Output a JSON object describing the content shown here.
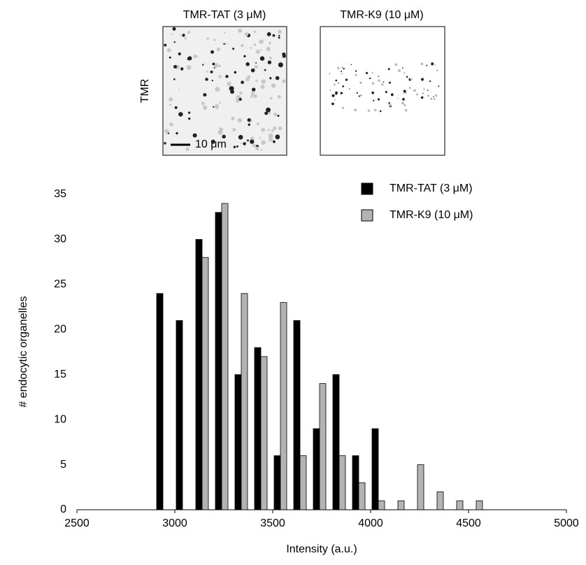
{
  "image_panels": {
    "titles": [
      "TMR-TAT (3 μM)",
      "TMR-K9 (10 μM)"
    ],
    "row_label": "TMR",
    "scale_bar": "10 μm"
  },
  "chart_data": {
    "type": "bar",
    "x": [
      2900,
      3000,
      3100,
      3200,
      3300,
      3400,
      3500,
      3600,
      3700,
      3800,
      3900,
      4000,
      4100,
      4200,
      4300,
      4400,
      4500
    ],
    "series": [
      {
        "name": "TMR-TAT (3 μM)",
        "color": "#000000",
        "values": [
          24,
          21,
          30,
          33,
          15,
          18,
          6,
          21,
          9,
          15,
          6,
          9,
          null,
          null,
          null,
          null,
          null
        ]
      },
      {
        "name": "TMR-K9 (10 μM)",
        "color": "#b3b3b3",
        "values": [
          null,
          null,
          28,
          34,
          24,
          17,
          23,
          6,
          14,
          6,
          3,
          1,
          1,
          5,
          2,
          1,
          1
        ]
      }
    ],
    "xlabel": "Intensity (a.u.)",
    "ylabel": "# endocytic organelles",
    "xlim": [
      2500,
      5000
    ],
    "xticks": [
      2500,
      3000,
      3500,
      4000,
      4500,
      5000
    ],
    "ylim": [
      0,
      35
    ],
    "yticks": [
      0,
      5,
      10,
      15,
      20,
      25,
      30,
      35
    ],
    "grid": false,
    "legend": "top-right"
  }
}
